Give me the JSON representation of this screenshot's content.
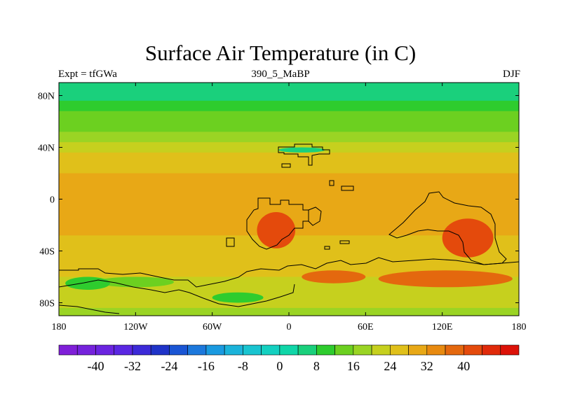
{
  "title": "Surface Air Temperature (in C)",
  "subtitle_left": "Expt = tfGWa",
  "subtitle_center": "390_5_MaBP",
  "subtitle_right": "DJF",
  "axes": {
    "lon_ticks": [
      {
        "value": -180,
        "label": "180"
      },
      {
        "value": -120,
        "label": "120W"
      },
      {
        "value": -60,
        "label": "60W"
      },
      {
        "value": 0,
        "label": "0"
      },
      {
        "value": 60,
        "label": "60E"
      },
      {
        "value": 120,
        "label": "120E"
      },
      {
        "value": 180,
        "label": "180"
      }
    ],
    "lat_ticks": [
      {
        "value": 80,
        "label": "80N"
      },
      {
        "value": 40,
        "label": "40N"
      },
      {
        "value": 0,
        "label": "0"
      },
      {
        "value": -40,
        "label": "40S"
      },
      {
        "value": -80,
        "label": "80S"
      }
    ],
    "lon_range": [
      -180,
      180
    ],
    "lat_range": [
      -90,
      90
    ]
  },
  "colorbar": {
    "levels": [
      -48,
      -44,
      -40,
      -36,
      -32,
      -28,
      -24,
      -20,
      -16,
      -12,
      -8,
      -4,
      0,
      4,
      8,
      12,
      16,
      20,
      24,
      28,
      32,
      36,
      40,
      44,
      48
    ],
    "colors": [
      "#7f1fd8",
      "#7522dc",
      "#6b24e0",
      "#5a27e2",
      "#3c2ad8",
      "#1f33c8",
      "#1a55d4",
      "#1c78dc",
      "#1a9ae0",
      "#1bb3da",
      "#19c4d0",
      "#14d0c0",
      "#10d6a8",
      "#1ad07c",
      "#2ecc2e",
      "#6cd020",
      "#9ad424",
      "#c6d01e",
      "#e0c01a",
      "#e8a816",
      "#e88a10",
      "#e4680e",
      "#e44a0c",
      "#e02a0a",
      "#dc1208"
    ],
    "labels": [
      "-40",
      "-32",
      "-24",
      "-16",
      "-8",
      "0",
      "8",
      "16",
      "24",
      "32",
      "40"
    ]
  },
  "chart_data": {
    "type": "heatmap",
    "variable": "Surface Air Temperature (in C)",
    "experiment": "tfGWa",
    "time": "390_5_MaBP",
    "season": "DJF",
    "lat_bands_C": [
      {
        "lat": 88,
        "value": 4
      },
      {
        "lat": 80,
        "value": 5
      },
      {
        "lat": 72,
        "value": 8
      },
      {
        "lat": 64,
        "value": 12
      },
      {
        "lat": 56,
        "value": 15
      },
      {
        "lat": 48,
        "value": 19
      },
      {
        "lat": 40,
        "value": 22
      },
      {
        "lat": 32,
        "value": 25
      },
      {
        "lat": 24,
        "value": 27
      },
      {
        "lat": 16,
        "value": 29
      },
      {
        "lat": 8,
        "value": 30
      },
      {
        "lat": 0,
        "value": 30
      },
      {
        "lat": -8,
        "value": 29
      },
      {
        "lat": -16,
        "value": 29
      },
      {
        "lat": -24,
        "value": 28
      },
      {
        "lat": -32,
        "value": 27
      },
      {
        "lat": -40,
        "value": 26
      },
      {
        "lat": -48,
        "value": 25
      },
      {
        "lat": -56,
        "value": 24
      },
      {
        "lat": -64,
        "value": 23
      },
      {
        "lat": -72,
        "value": 21
      },
      {
        "lat": -80,
        "value": 20
      },
      {
        "lat": -88,
        "value": 18
      }
    ],
    "regions_C": [
      {
        "lon": [
          -8,
          28
        ],
        "lat": [
          40,
          36
        ],
        "value": 5
      },
      {
        "lon": [
          -150,
          -90
        ],
        "lat": [
          -60,
          -68
        ],
        "value": 12
      },
      {
        "lon": [
          -175,
          -140
        ],
        "lat": [
          -60,
          -70
        ],
        "value": 10
      },
      {
        "lon": [
          -60,
          -20
        ],
        "lat": [
          -72,
          -80
        ],
        "value": 8
      },
      {
        "lon": [
          -25,
          5
        ],
        "lat": [
          -10,
          -38
        ],
        "value": 40
      },
      {
        "lon": [
          120,
          160
        ],
        "lat": [
          -15,
          -45
        ],
        "value": 43
      },
      {
        "lon": [
          10,
          60
        ],
        "lat": [
          -55,
          -65
        ],
        "value": 36
      },
      {
        "lon": [
          70,
          175
        ],
        "lat": [
          -55,
          -68
        ],
        "value": 36
      }
    ]
  }
}
